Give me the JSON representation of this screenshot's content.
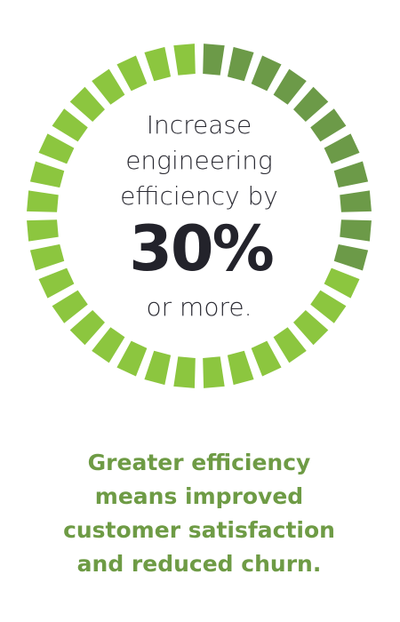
{
  "headline": {
    "lines": [
      "Increase",
      "engineering",
      "efficiency by"
    ],
    "figure": "30%",
    "suffix": "or more."
  },
  "caption": {
    "lines": [
      "Greater efficiency",
      "means improved",
      "customer satisfaction",
      "and reduced churn."
    ]
  }
}
